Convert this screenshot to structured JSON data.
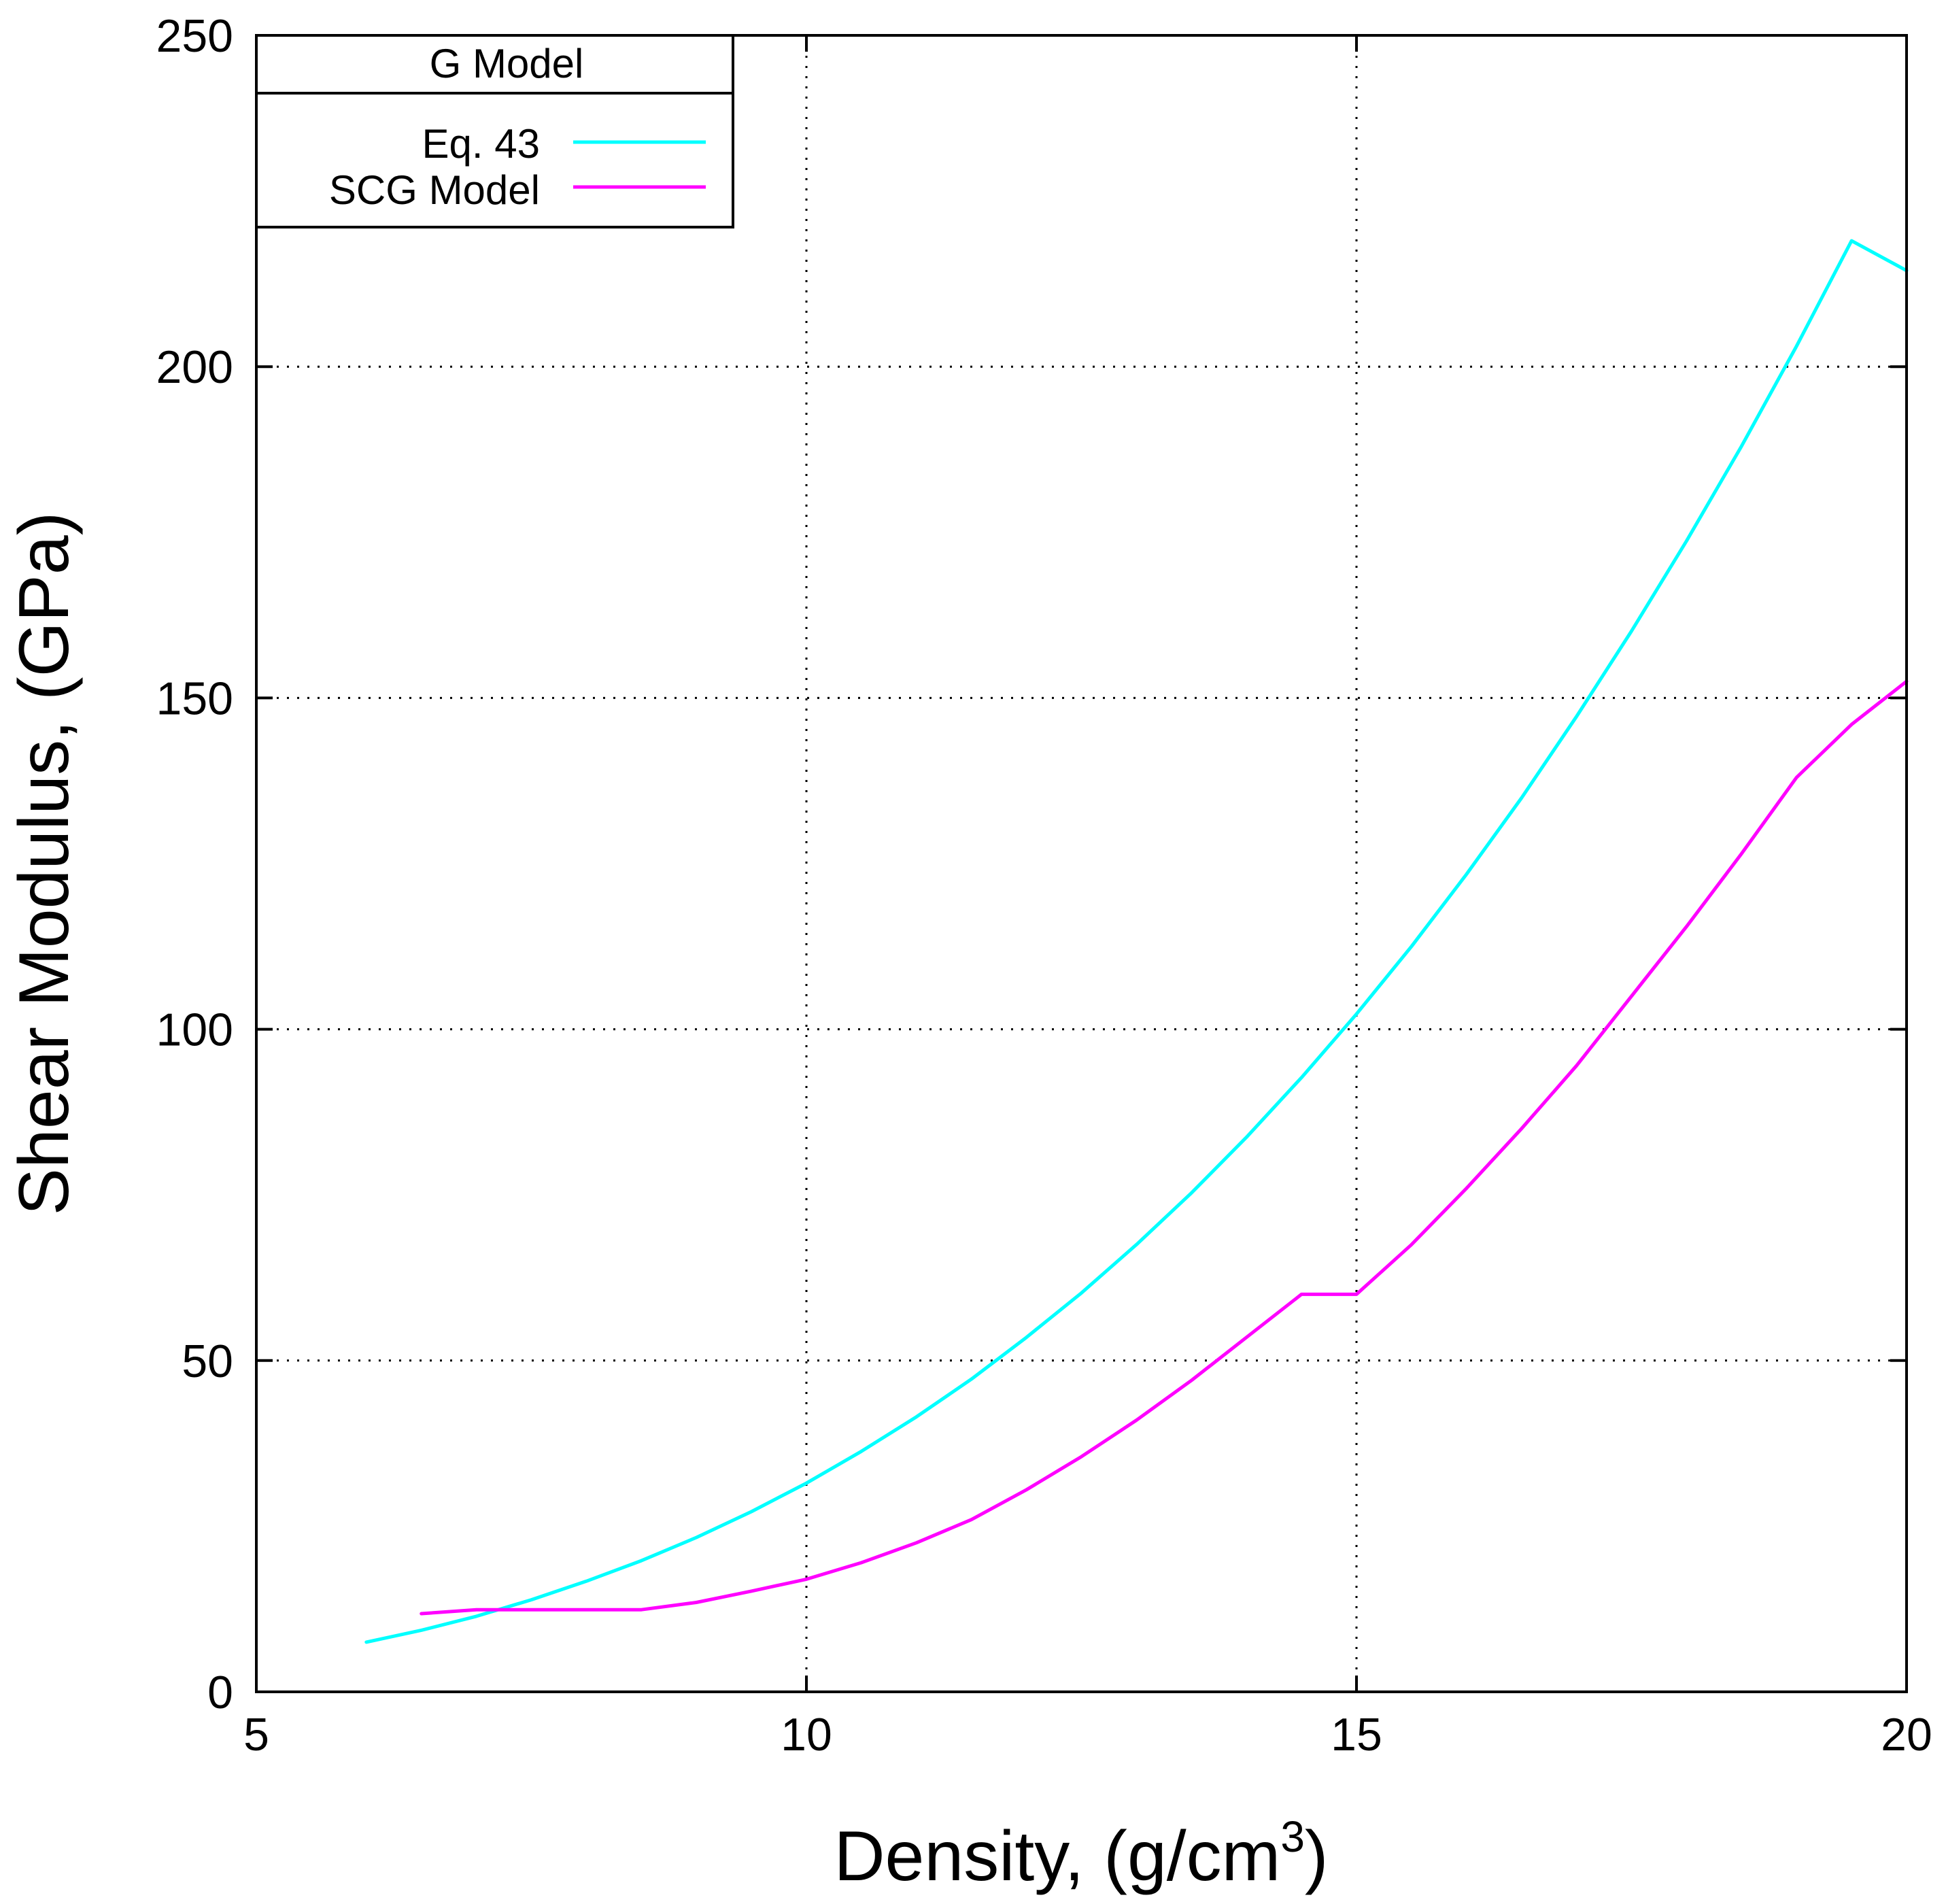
{
  "chart_data": {
    "type": "line",
    "xlabel": "Density, (g/cm",
    "xlabel_superscript": "3",
    "xlabel_suffix": ")",
    "ylabel": "Shear Modulus, (GPa)",
    "xlim": [
      5,
      20
    ],
    "ylim": [
      0,
      250
    ],
    "xticks": [
      5,
      10,
      15,
      20
    ],
    "yticks": [
      0,
      50,
      100,
      150,
      200,
      250
    ],
    "grid": true,
    "legend": {
      "title": "G Model",
      "position": "top-left"
    },
    "series": [
      {
        "name": "Eq. 43",
        "color": "#00ffff",
        "x": [
          6.0,
          6.5,
          7.0,
          7.5,
          8.0,
          8.5,
          9.0,
          9.5,
          10.0,
          10.5,
          11.0,
          11.5,
          12.0,
          12.5,
          13.0,
          13.5,
          14.0,
          14.5,
          15.0,
          15.5,
          16.0,
          16.5,
          17.0,
          17.5,
          18.0,
          18.5,
          19.0,
          19.5,
          20.0
        ],
        "y": [
          7.5,
          9.3,
          11.4,
          13.9,
          16.7,
          19.8,
          23.3,
          27.2,
          31.5,
          36.3,
          41.5,
          47.2,
          53.5,
          60.2,
          67.5,
          75.3,
          83.7,
          92.7,
          102.3,
          112.5,
          123.4,
          134.9,
          147.2,
          160.1,
          173.7,
          188.0,
          203.1,
          219.0,
          214.5
        ]
      },
      {
        "name": "SCG Model",
        "color": "#ff00ff",
        "x": [
          6.5,
          7.0,
          7.5,
          8.0,
          8.5,
          9.0,
          9.5,
          10.0,
          10.5,
          11.0,
          11.5,
          12.0,
          12.5,
          13.0,
          13.5,
          14.0,
          14.5,
          15.0,
          15.5,
          16.0,
          16.5,
          17.0,
          17.5,
          18.0,
          18.5,
          19.0,
          19.5,
          20.0
        ],
        "y": [
          11.8,
          12.4,
          12.4,
          12.4,
          12.4,
          13.5,
          15.2,
          17.0,
          19.5,
          22.5,
          26.0,
          30.5,
          35.5,
          41.0,
          47.0,
          53.5,
          60.0,
          60.0,
          67.5,
          76.0,
          85.0,
          94.5,
          105.0,
          115.5,
          126.5,
          138.0,
          146.0,
          152.5
        ]
      }
    ]
  }
}
